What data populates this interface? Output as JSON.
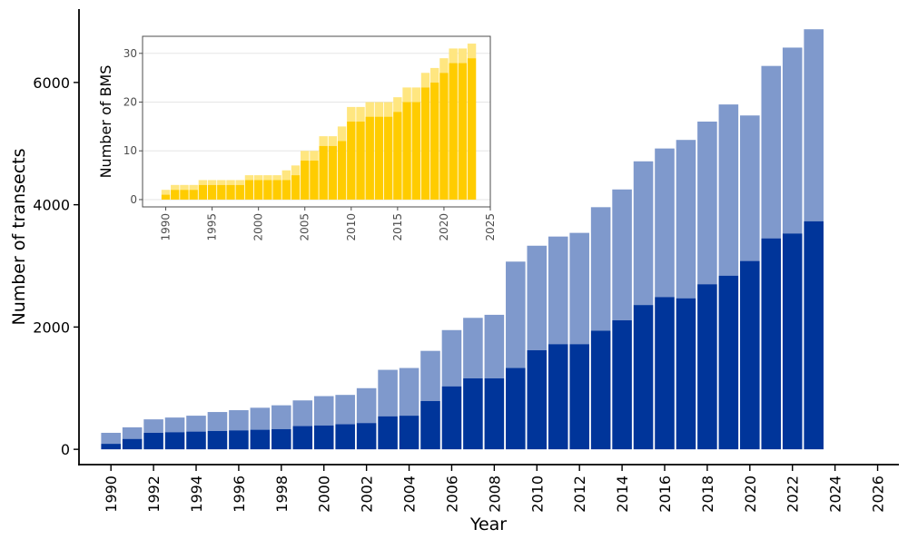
{
  "chart_data": [
    {
      "type": "bar",
      "stacked": true,
      "title": "",
      "xlabel": "Year",
      "ylabel": "Number of transects",
      "xlim": [
        1988.5,
        2027
      ],
      "ylim": [
        -250,
        7200
      ],
      "x_ticks": [
        1990,
        1992,
        1994,
        1996,
        1998,
        2000,
        2002,
        2004,
        2006,
        2008,
        2010,
        2012,
        2014,
        2016,
        2018,
        2020,
        2022,
        2024,
        2026
      ],
      "y_ticks": [
        0,
        2000,
        4000,
        6000
      ],
      "grid": false,
      "legend": "none",
      "colors": {
        "lower": "#00359A",
        "upper": "#7F99CC"
      },
      "categories": [
        1990,
        1991,
        1992,
        1993,
        1994,
        1995,
        1996,
        1997,
        1998,
        1999,
        2000,
        2001,
        2002,
        2003,
        2004,
        2005,
        2006,
        2007,
        2008,
        2009,
        2010,
        2011,
        2012,
        2013,
        2014,
        2015,
        2016,
        2017,
        2018,
        2019,
        2020,
        2021,
        2022,
        2023
      ],
      "series": [
        {
          "name": "lower",
          "values": [
            90,
            170,
            270,
            280,
            290,
            300,
            310,
            320,
            330,
            380,
            390,
            410,
            430,
            540,
            550,
            790,
            1030,
            1160,
            1160,
            1330,
            1620,
            1720,
            1720,
            1940,
            2110,
            2360,
            2490,
            2470,
            2700,
            2840,
            3080,
            3450,
            3530,
            3730
          ]
        },
        {
          "name": "total",
          "values": [
            270,
            360,
            490,
            520,
            550,
            610,
            640,
            680,
            720,
            800,
            870,
            890,
            1000,
            1300,
            1330,
            1610,
            1950,
            2150,
            2200,
            3070,
            3330,
            3480,
            3540,
            3960,
            4250,
            4710,
            4920,
            5060,
            5360,
            5640,
            5460,
            6270,
            6570,
            6870
          ]
        }
      ]
    },
    {
      "type": "bar",
      "stacked": true,
      "title": "",
      "xlabel": "",
      "ylabel": "Number of BMS",
      "xlim": [
        1987.5,
        2025
      ],
      "ylim": [
        -1.5,
        33.5
      ],
      "x_ticks": [
        1990,
        1995,
        2000,
        2005,
        2010,
        2015,
        2020,
        2025
      ],
      "y_ticks": [
        0,
        10,
        20,
        30
      ],
      "grid": true,
      "legend": "none",
      "colors": {
        "lower": "#FFCC00",
        "upper": "#FFE680",
        "panel": "#FFFFFF",
        "grid": "#E5E5E5",
        "border": "#4D4D4D"
      },
      "categories": [
        1990,
        1991,
        1992,
        1993,
        1994,
        1995,
        1996,
        1997,
        1998,
        1999,
        2000,
        2001,
        2002,
        2003,
        2004,
        2005,
        2006,
        2007,
        2008,
        2009,
        2010,
        2011,
        2012,
        2013,
        2014,
        2015,
        2016,
        2017,
        2018,
        2019,
        2020,
        2021,
        2022,
        2023
      ],
      "series": [
        {
          "name": "lower",
          "values": [
            1,
            2,
            2,
            2,
            3,
            3,
            3,
            3,
            3,
            4,
            4,
            4,
            4,
            4,
            5,
            8,
            8,
            11,
            11,
            12,
            16,
            16,
            17,
            17,
            17,
            18,
            20,
            20,
            23,
            24,
            26,
            28,
            28,
            29
          ]
        },
        {
          "name": "total",
          "values": [
            2,
            3,
            3,
            3,
            4,
            4,
            4,
            4,
            4,
            5,
            5,
            5,
            5,
            6,
            7,
            10,
            10,
            13,
            13,
            15,
            19,
            19,
            20,
            20,
            20,
            21,
            23,
            23,
            26,
            27,
            29,
            31,
            31,
            32
          ]
        }
      ]
    }
  ]
}
